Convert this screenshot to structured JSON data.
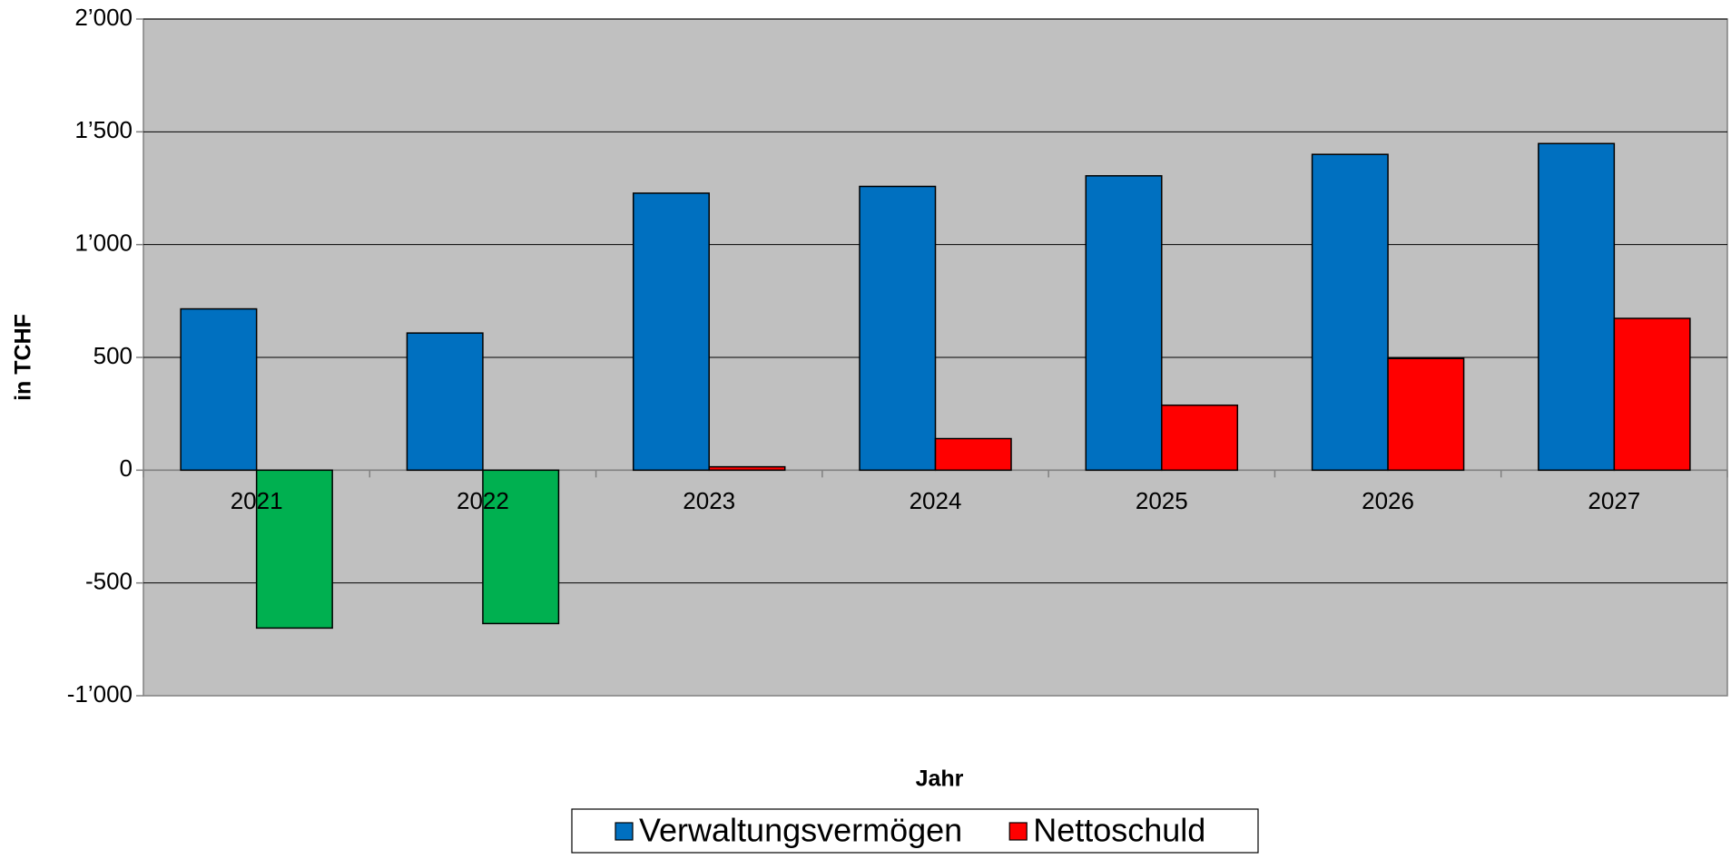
{
  "chart_data": {
    "type": "bar",
    "categories": [
      "2021",
      "2022",
      "2023",
      "2024",
      "2025",
      "2026",
      "2027"
    ],
    "series": [
      {
        "name": "Verwaltungsvermögen",
        "color": "#0070c0",
        "values": [
          715,
          608,
          1228,
          1258,
          1305,
          1400,
          1448
        ]
      },
      {
        "name": "Nettoschuld",
        "color": "#ff0000",
        "negative_color": "#00b050",
        "values": [
          -700,
          -680,
          15,
          140,
          288,
          495,
          673
        ]
      }
    ],
    "ylim": [
      -1000,
      2000
    ],
    "yticks": [
      {
        "value": -1000,
        "label": "-1’000"
      },
      -500,
      0,
      500,
      {
        "value": 1000,
        "label": "1’000"
      },
      {
        "value": 1500,
        "label": "1’500"
      },
      {
        "value": 2000,
        "label": "2’000"
      }
    ],
    "y_label": "in TCHF",
    "x_label": "Jahr",
    "grid": true,
    "legend": "bottom"
  }
}
